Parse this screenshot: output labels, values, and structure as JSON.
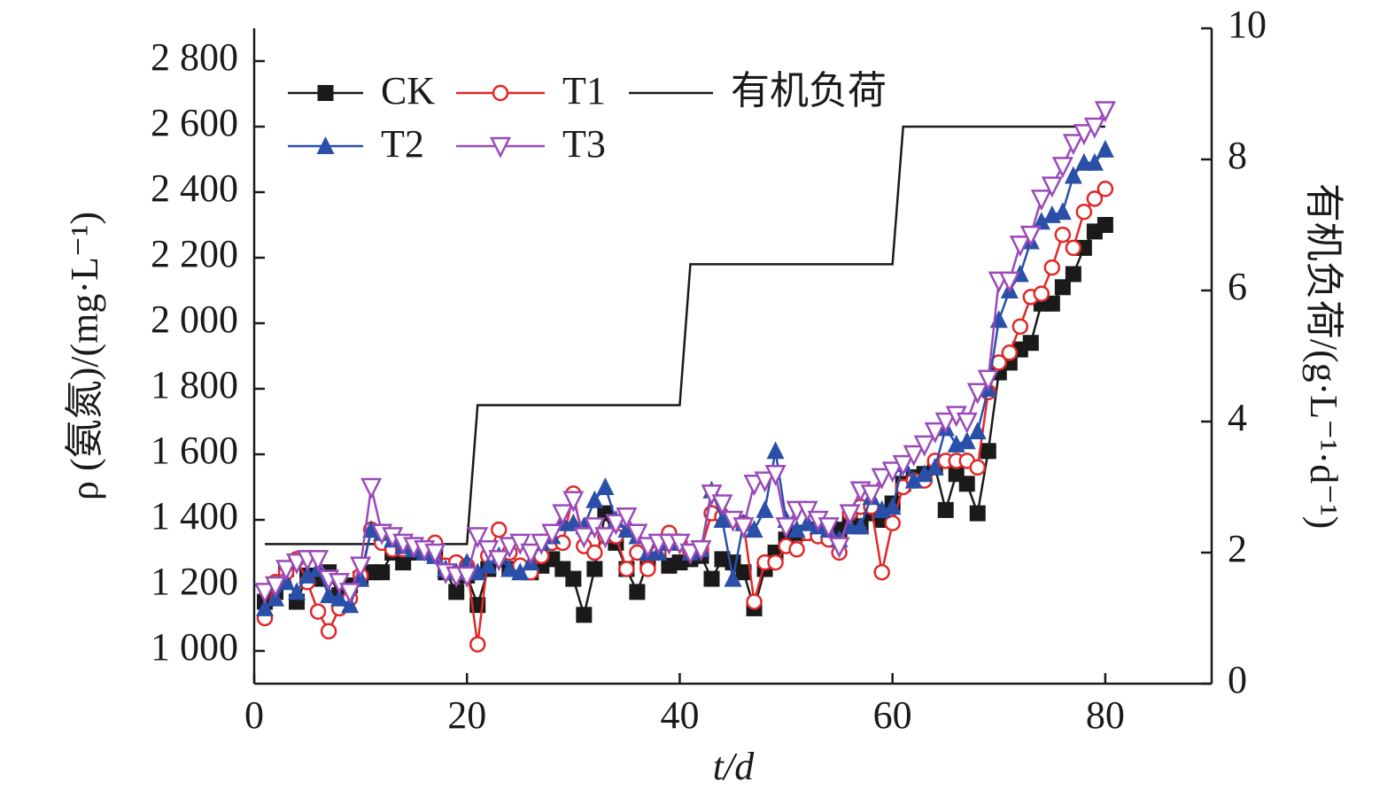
{
  "chart_data": {
    "type": "line",
    "xlabel": "t/d",
    "ylabel": "ρ (氨氮)/(mg·L⁻¹)",
    "y2label": "有机负荷/(g·L⁻¹·d⁻¹)",
    "xlim": [
      0,
      90
    ],
    "xticks": [
      0,
      20,
      40,
      60,
      80
    ],
    "ylim": [
      900,
      2900
    ],
    "yticks": [
      {
        "value": 1000,
        "label": "1 000"
      },
      {
        "value": 1200,
        "label": "1 200"
      },
      {
        "value": 1400,
        "label": "1 400"
      },
      {
        "value": 1600,
        "label": "1 600"
      },
      {
        "value": 1800,
        "label": "1 800"
      },
      {
        "value": 2000,
        "label": "2 000"
      },
      {
        "value": 2200,
        "label": "2 200"
      },
      {
        "value": 2400,
        "label": "2 400"
      },
      {
        "value": 2600,
        "label": "2 600"
      },
      {
        "value": 2800,
        "label": "2 800"
      }
    ],
    "y2lim": [
      0,
      10
    ],
    "y2ticks": [
      0,
      2,
      4,
      6,
      8,
      10
    ],
    "x": [
      1,
      2,
      3,
      4,
      5,
      6,
      7,
      8,
      9,
      10,
      11,
      12,
      13,
      14,
      15,
      16,
      17,
      18,
      19,
      20,
      21,
      22,
      23,
      24,
      25,
      26,
      27,
      28,
      29,
      30,
      31,
      32,
      33,
      34,
      35,
      36,
      37,
      38,
      39,
      40,
      41,
      42,
      43,
      44,
      45,
      46,
      47,
      48,
      49,
      50,
      51,
      52,
      53,
      54,
      55,
      56,
      57,
      58,
      59,
      60,
      61,
      62,
      63,
      64,
      65,
      66,
      67,
      68,
      69,
      70,
      71,
      72,
      73,
      74,
      75,
      76,
      77,
      78,
      79,
      80
    ],
    "series": [
      {
        "name": "CK",
        "color": "#1a1a1a",
        "marker": "square",
        "values": [
          1150,
          1180,
          1250,
          1150,
          1230,
          1220,
          1240,
          1170,
          1200,
          1220,
          1240,
          1240,
          1300,
          1270,
          1300,
          1300,
          1290,
          1240,
          1180,
          1230,
          1140,
          1250,
          1280,
          1250,
          1250,
          1240,
          1260,
          1280,
          1250,
          1220,
          1110,
          1250,
          1420,
          1330,
          1250,
          1180,
          1270,
          1300,
          1260,
          1270,
          1280,
          1290,
          1220,
          1280,
          1270,
          1240,
          1130,
          1250,
          1300,
          1340,
          1360,
          1360,
          1370,
          1370,
          1370,
          1390,
          1380,
          1420,
          1400,
          1450,
          1510,
          1530,
          1540,
          1560,
          1430,
          1540,
          1510,
          1420,
          1610,
          1850,
          1880,
          1920,
          1940,
          2060,
          2060,
          2110,
          2150,
          2230,
          2280,
          2300
        ]
      },
      {
        "name": "T1",
        "color": "#e02828",
        "marker": "circle",
        "values": [
          1100,
          1210,
          1240,
          1280,
          1210,
          1120,
          1060,
          1130,
          1160,
          1230,
          1370,
          1330,
          1310,
          1310,
          1310,
          1300,
          1330,
          1260,
          1270,
          1260,
          1020,
          1290,
          1370,
          1300,
          1260,
          1240,
          1290,
          1330,
          1330,
          1480,
          1320,
          1300,
          1350,
          1350,
          1250,
          1300,
          1250,
          1300,
          1360,
          1330,
          1300,
          1310,
          1420,
          1410,
          1400,
          1390,
          1150,
          1270,
          1270,
          1320,
          1310,
          1360,
          1350,
          1340,
          1300,
          1420,
          1440,
          1440,
          1240,
          1390,
          1500,
          1520,
          1520,
          1580,
          1580,
          1580,
          1580,
          1560,
          1790,
          1880,
          1910,
          1990,
          2080,
          2090,
          2170,
          2270,
          2230,
          2340,
          2380,
          2410
        ]
      },
      {
        "name": "T2",
        "color": "#2a4fa8",
        "marker": "triangle",
        "values": [
          1130,
          1160,
          1210,
          1180,
          1230,
          1250,
          1170,
          1160,
          1140,
          1220,
          1370,
          1360,
          1340,
          1320,
          1310,
          1300,
          1290,
          1250,
          1240,
          1270,
          1240,
          1260,
          1290,
          1250,
          1240,
          1270,
          1330,
          1350,
          1390,
          1390,
          1380,
          1460,
          1500,
          1400,
          1370,
          1350,
          1300,
          1300,
          1330,
          1330,
          1300,
          1310,
          1490,
          1400,
          1220,
          1390,
          1370,
          1430,
          1610,
          1400,
          1370,
          1390,
          1380,
          1370,
          1340,
          1380,
          1380,
          1470,
          1430,
          1440,
          1570,
          1520,
          1540,
          1560,
          1680,
          1630,
          1640,
          1670,
          1800,
          2010,
          2100,
          2150,
          2250,
          2310,
          2330,
          2340,
          2450,
          2490,
          2490,
          2530
        ]
      },
      {
        "name": "T3",
        "color": "#9a4ab8",
        "marker": "triangle-down",
        "values": [
          1180,
          1200,
          1250,
          1270,
          1280,
          1280,
          1220,
          1210,
          1180,
          1260,
          1500,
          1360,
          1350,
          1330,
          1320,
          1310,
          1300,
          1240,
          1230,
          1230,
          1350,
          1310,
          1280,
          1320,
          1330,
          1300,
          1330,
          1360,
          1420,
          1460,
          1350,
          1380,
          1350,
          1390,
          1410,
          1360,
          1320,
          1330,
          1330,
          1330,
          1300,
          1310,
          1480,
          1450,
          1400,
          1380,
          1510,
          1520,
          1540,
          1380,
          1430,
          1430,
          1400,
          1380,
          1320,
          1420,
          1490,
          1480,
          1530,
          1550,
          1570,
          1600,
          1630,
          1670,
          1700,
          1720,
          1700,
          1790,
          1830,
          2130,
          2130,
          2240,
          2270,
          2380,
          2420,
          2480,
          2550,
          2580,
          2600,
          2650
        ]
      },
      {
        "name": "有机负荷",
        "color": "#1a1a1a",
        "axis": "y2",
        "x": [
          1,
          20,
          21,
          40,
          41,
          60,
          61,
          80
        ],
        "values": [
          2.13,
          2.13,
          4.25,
          4.25,
          6.4,
          6.4,
          8.5,
          8.5
        ]
      }
    ]
  }
}
